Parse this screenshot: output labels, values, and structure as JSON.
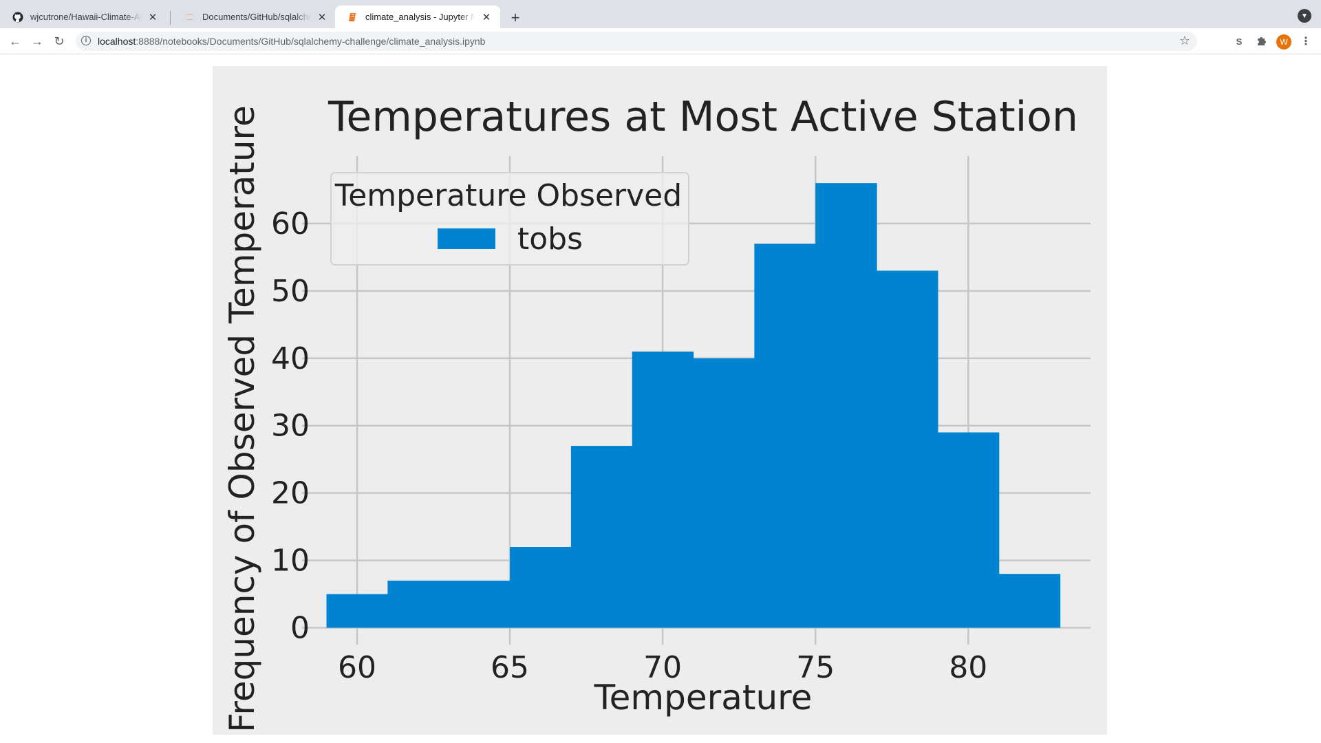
{
  "browser": {
    "tabs": [
      {
        "title": "wjcutrone/Hawaii-Climate-Analysis",
        "icon": "github-icon",
        "active": false
      },
      {
        "title": "Documents/GitHub/sqlalchemy-challenge/",
        "icon": "jupyter-icon",
        "active": false
      },
      {
        "title": "climate_analysis - Jupyter Notebook",
        "icon": "notebook-icon",
        "active": true
      }
    ],
    "new_tab_label": "+",
    "url_host": "localhost",
    "url_rest": ":8888/notebooks/Documents/GitHub/sqlalchemy-challenge/climate_analysis.ipynb",
    "extension_label": "S",
    "avatar_initial": "W"
  },
  "colors": {
    "accent_bar": "#0084d1",
    "plot_bg": "#ededed",
    "grid": "#c6c6c6",
    "avatar": "#e8710a"
  },
  "chart_data": {
    "type": "bar",
    "title": "Temperatures at Most Active Station",
    "xlabel": "Temperature",
    "ylabel": "Frequency of Observed Temperature",
    "legend_title": "Temperature Observed",
    "legend_placement": "upper-left",
    "grid": true,
    "xlim": [
      58.2,
      84.0
    ],
    "ylim": [
      -2.5,
      70
    ],
    "xticks": [
      60,
      65,
      70,
      75,
      80
    ],
    "yticks": [
      0,
      10,
      20,
      30,
      40,
      50,
      60
    ],
    "series": [
      {
        "name": "tobs",
        "bin_edges": [
          59,
          61,
          63,
          65,
          67,
          69,
          71,
          73,
          75,
          77,
          79,
          81,
          83
        ],
        "values": [
          5,
          7,
          7,
          12,
          27,
          41,
          40,
          57,
          66,
          53,
          29,
          8
        ]
      }
    ]
  }
}
